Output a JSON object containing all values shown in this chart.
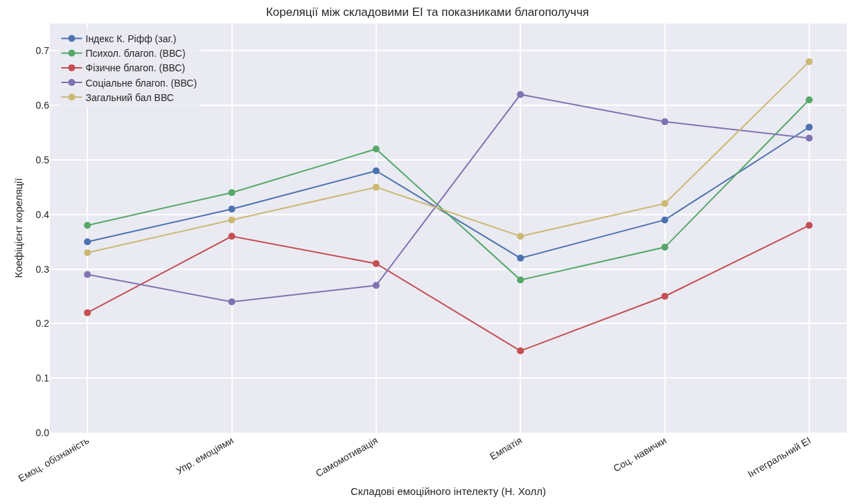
{
  "chart_data": {
    "type": "line",
    "title": "Кореляції між складовими EI та показниками благополуччя",
    "xlabel": "Складові емоційного інтелекту (Н. Холл)",
    "ylabel": "Коефіцієнт кореляції",
    "categories": [
      "Емоц. обізнаність",
      "Упр. емоціями",
      "Самомотивація",
      "Емпатія",
      "Соц. навички",
      "Інтегральний EI"
    ],
    "series": [
      {
        "name": "Індекс К. Ріфф (заг.)",
        "color": "#4c72b0",
        "values": [
          0.35,
          0.41,
          0.48,
          0.32,
          0.39,
          0.56
        ]
      },
      {
        "name": "Психол. благоп. (ВВС)",
        "color": "#55a868",
        "values": [
          0.38,
          0.44,
          0.52,
          0.28,
          0.34,
          0.61
        ]
      },
      {
        "name": "Фізичне благоп. (ВВС)",
        "color": "#c44e52",
        "values": [
          0.22,
          0.36,
          0.31,
          0.15,
          0.25,
          0.38
        ]
      },
      {
        "name": "Соціальне благоп. (ВВС)",
        "color": "#8172b2",
        "values": [
          0.29,
          0.24,
          0.27,
          0.62,
          0.57,
          0.54
        ]
      },
      {
        "name": "Загальний бал ВВС",
        "color": "#ccb974",
        "values": [
          0.33,
          0.39,
          0.45,
          0.36,
          0.42,
          0.68
        ]
      }
    ],
    "ylim": [
      0,
      0.75
    ],
    "yticks": [
      {
        "value": 0,
        "label": "0.0"
      },
      0.1,
      0.2,
      0.3,
      0.4,
      0.5,
      0.6,
      0.7
    ],
    "grid": true,
    "legend": "top left",
    "marker": "circle",
    "line_style": "solid"
  }
}
